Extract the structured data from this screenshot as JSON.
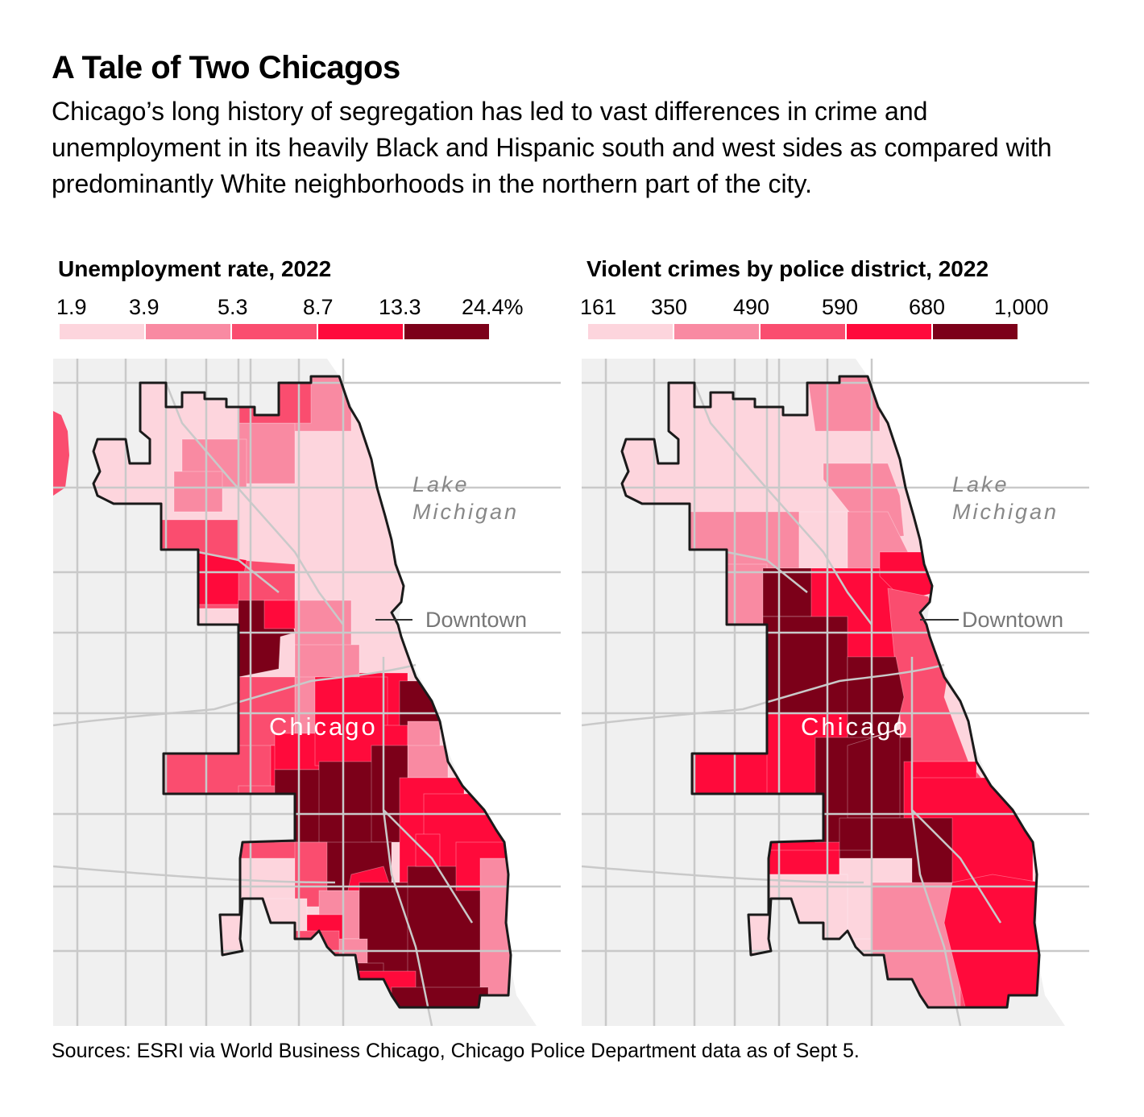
{
  "header": {
    "title": "A Tale of Two Chicagos",
    "subtitle": "Chicago’s long history of segregation has led to vast differences in crime and unemployment in its heavily Black and Hispanic south and west sides as compared with predominantly White neighborhoods in the northern part of the city."
  },
  "maps": [
    {
      "legend_title": "Unemployment rate, 2022",
      "legend_ticks": [
        "1.9",
        "3.9",
        "5.3",
        "8.7",
        "13.3",
        "24.4%"
      ],
      "legend_colors": [
        "#fdd5dd",
        "#f98aa2",
        "#fa4d6f",
        "#ff0a3b",
        "#7c0019"
      ],
      "labels": {
        "lake": [
          "Lake",
          "Michigan"
        ],
        "downtown": "Downtown",
        "city": "Chicago"
      }
    },
    {
      "legend_title": "Violent crimes by police district, 2022",
      "legend_ticks": [
        "161",
        "350",
        "490",
        "590",
        "680",
        "1,000"
      ],
      "legend_colors": [
        "#fdd5dd",
        "#f98aa2",
        "#fa4d6f",
        "#ff0a3b",
        "#7c0019"
      ],
      "labels": {
        "lake": [
          "Lake",
          "Michigan"
        ],
        "downtown": "Downtown",
        "city": "Chicago"
      }
    }
  ],
  "footer": {
    "sources": "Sources: ESRI via World Business Chicago, Chicago Police Department data as of Sept 5."
  }
}
